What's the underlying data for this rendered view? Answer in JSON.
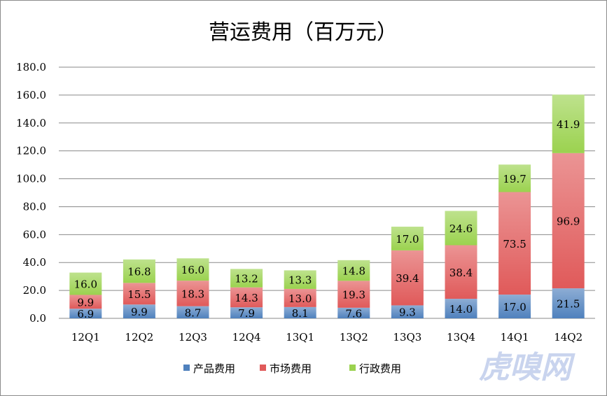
{
  "chart_data": {
    "type": "bar",
    "stacked": true,
    "title": "营运费用（百万元）",
    "categories": [
      "12Q1",
      "12Q2",
      "12Q3",
      "12Q4",
      "13Q1",
      "13Q2",
      "13Q3",
      "13Q4",
      "14Q1",
      "14Q2"
    ],
    "series": [
      {
        "name": "产品费用",
        "color": "#4f81bd",
        "values": [
          6.9,
          9.9,
          8.7,
          7.9,
          8.1,
          7.6,
          9.3,
          14.0,
          17.0,
          21.5
        ]
      },
      {
        "name": "市场费用",
        "color": "#e05a5a",
        "values": [
          9.9,
          15.5,
          18.3,
          14.3,
          13.0,
          19.3,
          39.4,
          38.4,
          73.5,
          96.9
        ]
      },
      {
        "name": "行政费用",
        "color": "#9bd24f",
        "values": [
          16.0,
          16.8,
          16.0,
          13.2,
          13.3,
          14.8,
          17.0,
          24.6,
          19.7,
          41.9
        ]
      }
    ],
    "ylim": [
      0,
      180
    ],
    "yticks": [
      0,
      20,
      40,
      60,
      80,
      100,
      120,
      140,
      160,
      180
    ],
    "ytick_labels": [
      "0.0",
      "20.0",
      "40.0",
      "60.0",
      "80.0",
      "100.0",
      "120.0",
      "140.0",
      "160.0",
      "180.0"
    ],
    "grid": true,
    "legend": "bottom"
  },
  "watermark": "虎嗅网"
}
